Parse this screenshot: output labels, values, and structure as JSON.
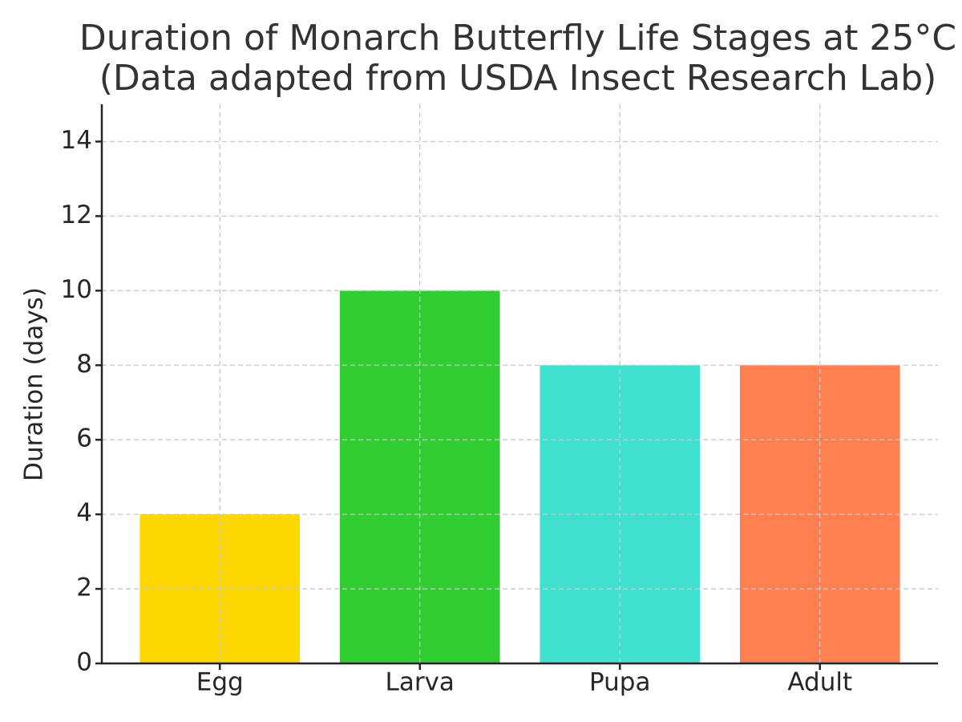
{
  "chart_data": {
    "type": "bar",
    "title": "Duration of Monarch Butterfly Life Stages at 25°C",
    "subtitle": "(Data adapted from USDA Insect Research Lab)",
    "y_label": "Duration (days)",
    "categories": [
      "Egg",
      "Larva",
      "Pupa",
      "Adult"
    ],
    "values": [
      4,
      10,
      8,
      8
    ],
    "colors": [
      "#FFD700",
      "#32CD32",
      "#40E0D0",
      "#FF7F50"
    ],
    "ylim": [
      0,
      15
    ],
    "yticks": [
      0,
      2,
      4,
      6,
      8,
      10,
      12,
      14
    ],
    "grid": true
  }
}
